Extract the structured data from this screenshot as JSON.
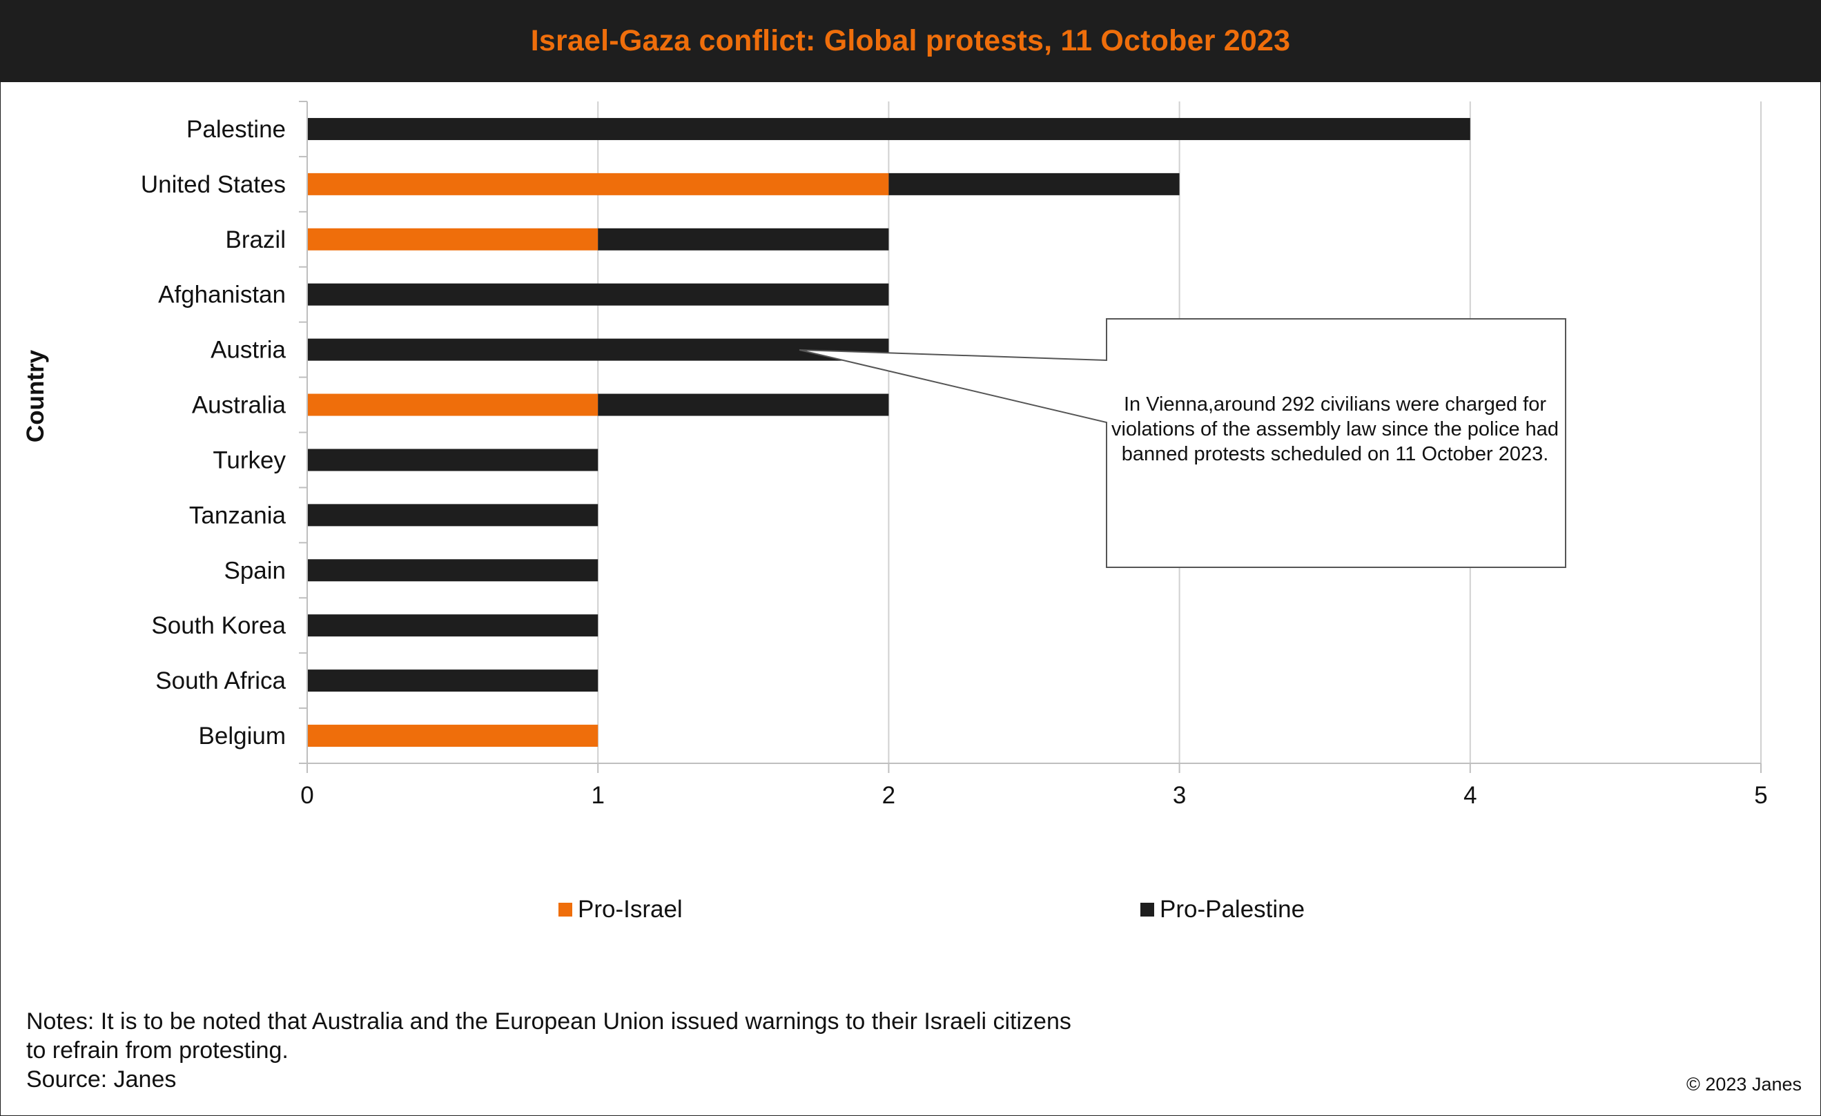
{
  "title": "Israel-Gaza conflict: Global protests, 11 October 2023",
  "colors": {
    "pro_israel": "#ef6e0b",
    "pro_palestine": "#1e1e1e",
    "title_bg": "#1e1e1e",
    "title_text": "#ef6e0b",
    "grid": "#d0d0d0"
  },
  "chart_data": {
    "type": "bar",
    "orientation": "horizontal",
    "stacked": true,
    "categories": [
      "Palestine",
      "United States",
      "Brazil",
      "Afghanistan",
      "Austria",
      "Australia",
      "Turkey",
      "Tanzania",
      "Spain",
      "South Korea",
      "South Africa",
      "Belgium"
    ],
    "series": [
      {
        "name": "Pro-Israel",
        "values": [
          0,
          2,
          1,
          0,
          0,
          1,
          0,
          0,
          0,
          0,
          0,
          1
        ]
      },
      {
        "name": "Pro-Palestine",
        "values": [
          4,
          1,
          1,
          2,
          2,
          1,
          1,
          1,
          1,
          1,
          1,
          0
        ]
      }
    ],
    "xlim": [
      0,
      5
    ],
    "xticks": [
      "0",
      "1",
      "2",
      "3",
      "4",
      "5"
    ],
    "ylabel": "Country",
    "xlabel": "",
    "grid": "vertical",
    "legend_position": "bottom",
    "annotation": {
      "category": "Austria",
      "text": "In Vienna,around 292 civilians were charged for violations of the assembly law since the police had banned protests scheduled on 11 October 2023."
    }
  },
  "legend": [
    {
      "label": "Pro-Israel"
    },
    {
      "label": "Pro-Palestine"
    }
  ],
  "notes": [
    "Notes: It is to be noted that Australia and the European Union issued warnings to their Israeli citizens",
    "to refrain from protesting.",
    "Source: Janes"
  ],
  "copyright": "© 2023 Janes"
}
